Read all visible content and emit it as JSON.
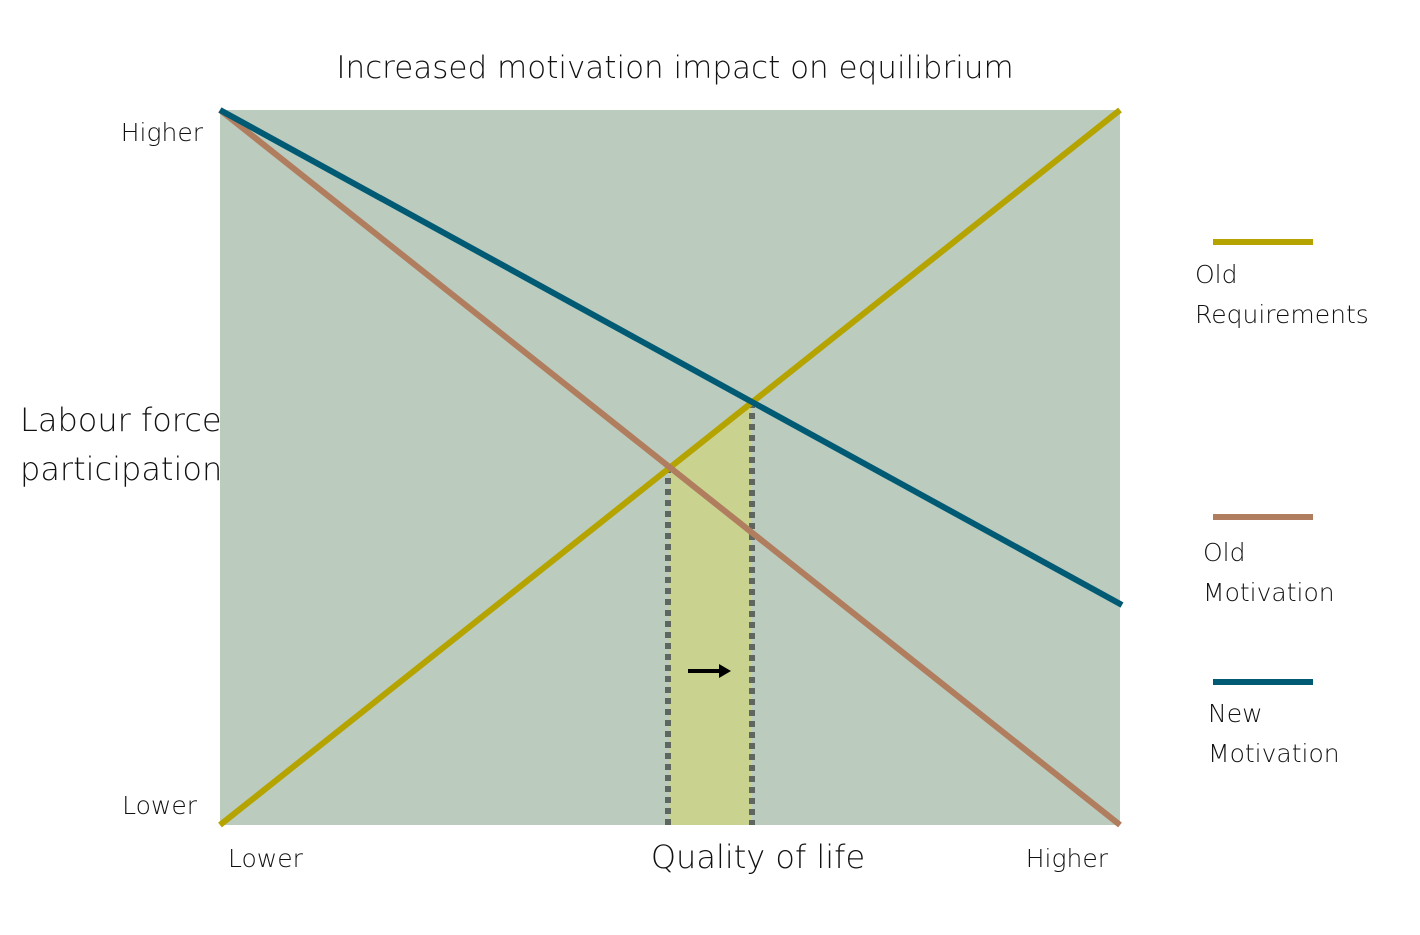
{
  "title": "Increased motivation impact on equilibrium",
  "y_axis": {
    "label": [
      "Labour force",
      "participation"
    ],
    "ticks": [
      "Higher",
      "Lower"
    ]
  },
  "x_axis": {
    "label": "Quality of life",
    "ticks": [
      "Lower",
      "Higher"
    ]
  },
  "legend": [
    {
      "label": [
        "Old",
        "Requirements"
      ]
    },
    {
      "label": [
        "Old",
        "Motivation"
      ]
    },
    {
      "label": [
        "New",
        "Motivation"
      ]
    }
  ]
}
